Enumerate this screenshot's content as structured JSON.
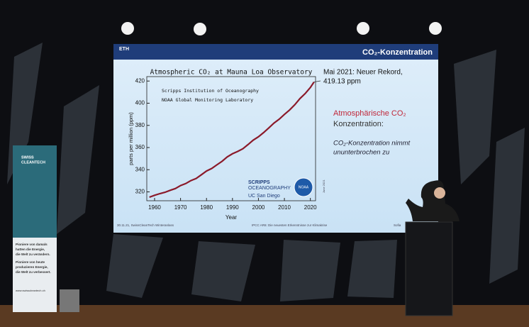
{
  "slide": {
    "logo": "ETH",
    "heading": "CO₂-Konzentration",
    "side_title": [
      "Atmosphärische CO₂",
      "Konzentration:"
    ],
    "side_text": [
      "CO₂-Konzentration nimmt",
      "ununterbrochen zu"
    ],
    "footer": [
      "30.11.21, SwissCleanTech Winteranlass",
      "IPCC AR6: Die neuesten Erkenntnisse zur Klimakrise",
      "Sofia"
    ],
    "logos": [
      "SCRIPPS",
      "OCEANOGRAPHY",
      "UC San Diego",
      "NOAA",
      "June 2021"
    ]
  },
  "banner": {
    "title": [
      "SWISS",
      "CLEANTECH"
    ],
    "lines": [
      "Pioniere von damals",
      "hatten die Energie,",
      "die Welt zu verändern.",
      "Pioniere von heute",
      "produzieren Energie,",
      "die Welt zu verbessert."
    ],
    "url": "www.swisscleantech.ch"
  },
  "chart_data": {
    "type": "line",
    "title": "Atmospheric CO₂ at Mauna Loa Observatory",
    "x_label": "Year",
    "y_label": "parts per million (ppm)",
    "notes": [
      "Scripps Institution of Oceanography",
      "NOAA Global Monitoring Laboratory"
    ],
    "annotation": [
      "Mai 2021: Neuer Rekord,",
      "419.13 ppm"
    ],
    "x": [
      1958,
      1960,
      1962,
      1964,
      1966,
      1968,
      1970,
      1972,
      1974,
      1976,
      1978,
      1980,
      1982,
      1984,
      1986,
      1988,
      1990,
      1992,
      1994,
      1996,
      1998,
      2000,
      2002,
      2004,
      2006,
      2008,
      2010,
      2012,
      2014,
      2016,
      2018,
      2020,
      2021.4
    ],
    "series": [
      {
        "name": "CO₂",
        "color": "#8b1a2a",
        "values": [
          315.2,
          316.9,
          318.4,
          319.6,
          321.4,
          323.0,
          325.7,
          327.5,
          330.2,
          332.1,
          335.4,
          338.8,
          341.1,
          344.4,
          347.6,
          351.6,
          354.4,
          356.5,
          358.9,
          362.7,
          366.7,
          369.7,
          373.5,
          377.7,
          382.1,
          385.6,
          389.9,
          393.9,
          398.6,
          404.2,
          408.7,
          414.2,
          419.13
        ]
      }
    ],
    "xlim": [
      1957,
      2022
    ],
    "ylim": [
      312,
      424
    ],
    "xticks": [
      1960,
      1970,
      1980,
      1990,
      2000,
      2010,
      2020
    ],
    "yticks": [
      320,
      340,
      360,
      380,
      400,
      420
    ]
  }
}
